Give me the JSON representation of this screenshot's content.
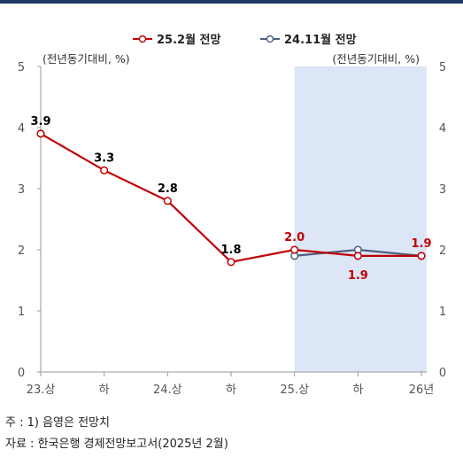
{
  "chart_data": {
    "type": "line",
    "categories": [
      "23.상",
      "하",
      "24.상",
      "하",
      "25.상",
      "하",
      "26년"
    ],
    "series": [
      {
        "name": "25.2월 전망",
        "values": [
          3.9,
          3.3,
          2.8,
          1.8,
          2.0,
          1.9,
          1.9
        ],
        "color": "#c00000"
      },
      {
        "name": "24.11월 전망",
        "values": [
          null,
          null,
          null,
          null,
          1.9,
          2.0,
          1.9
        ],
        "color": "#4d5f80"
      }
    ],
    "data_labels": [
      {
        "category": 0,
        "text": "3.9",
        "color": "#000000",
        "pos": "above"
      },
      {
        "category": 1,
        "text": "3.3",
        "color": "#000000",
        "pos": "above"
      },
      {
        "category": 2,
        "text": "2.8",
        "color": "#000000",
        "pos": "above"
      },
      {
        "category": 3,
        "text": "1.8",
        "color": "#000000",
        "pos": "above"
      },
      {
        "category": 4,
        "text": "2.0",
        "color": "#c00000",
        "pos": "above"
      },
      {
        "category": 5,
        "text": "1.9",
        "color": "#c00000",
        "pos": "below"
      },
      {
        "category": 6,
        "text": "1.9",
        "color": "#c00000",
        "pos": "above"
      }
    ],
    "yticks": [
      "0",
      "1",
      "2",
      "3",
      "4",
      "5"
    ],
    "ylim": [
      0,
      5
    ],
    "ylabel_left": "(전년동기대비, %)",
    "ylabel_right": "(전년동기대비, %)",
    "shaded_categories": [
      4,
      6
    ],
    "shade_color": "#dde6f6",
    "legend_position": "top-center",
    "grid": false
  },
  "notes": {
    "note": "주 : 1)  음영은 전망치",
    "source": "자료 :  한국은행 경제전망보고서(2025년 2월)"
  },
  "colors": {
    "top_rule": "#1f3864",
    "axis": "#9a9a9a",
    "tick_text": "#555555"
  }
}
